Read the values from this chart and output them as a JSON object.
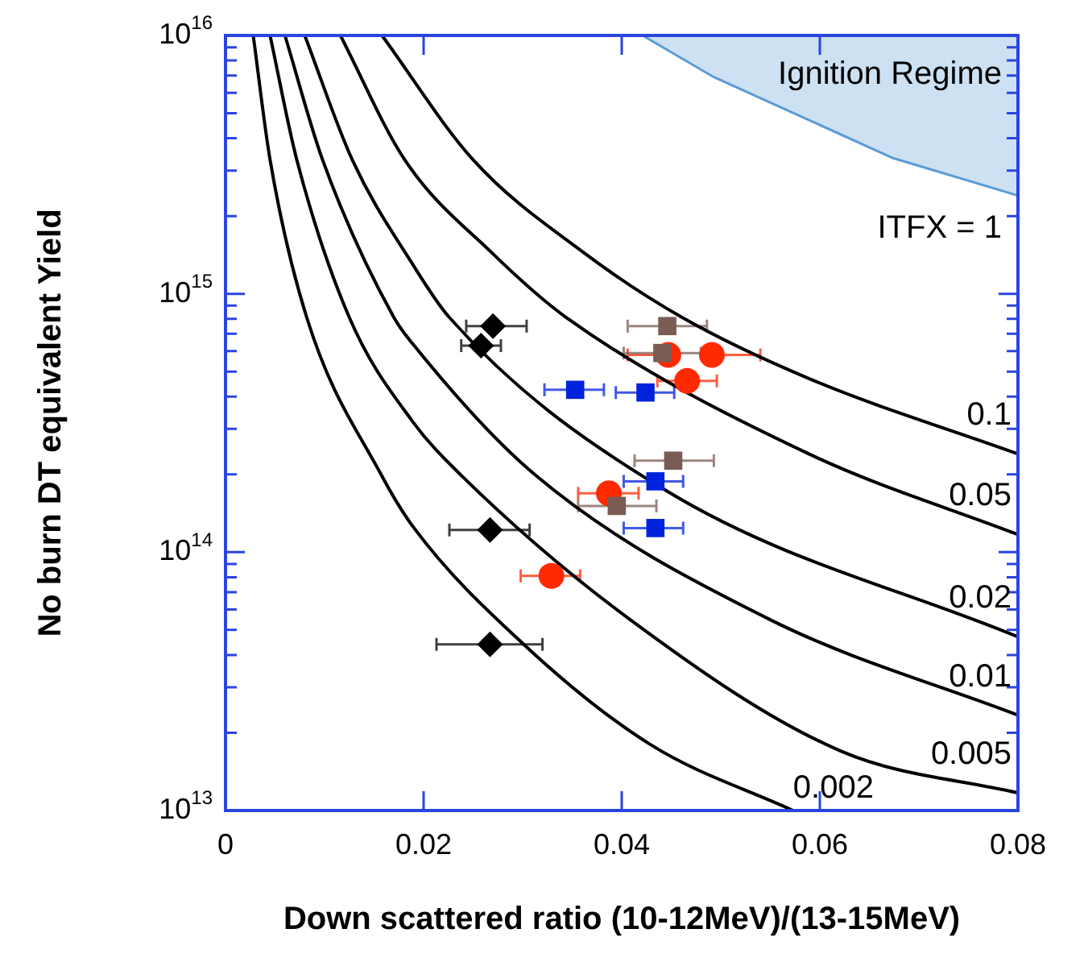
{
  "chart_data": {
    "type": "scatter",
    "xlabel": "Down scattered ratio (10-12MeV)/(13-15MeV)",
    "ylabel": "No burn DT equivalent Yield",
    "log": "y",
    "grid": false,
    "legend": false,
    "xlim": [
      0,
      0.08
    ],
    "xticks": [
      0,
      0.02,
      0.04,
      0.06,
      0.08
    ],
    "ylim": [
      10000000000000.0,
      1e+16
    ],
    "yticks": [
      {
        "value": 10000000000000.0,
        "label": "10$^{13}$"
      },
      {
        "value": 20000000000000.0,
        "label": null
      },
      {
        "value": 30000000000000.0,
        "label": null
      },
      {
        "value": 40000000000000.0,
        "label": null
      },
      {
        "value": 50000000000000.0,
        "label": null
      },
      {
        "value": 60000000000000.0,
        "label": null
      },
      {
        "value": 70000000000000.0,
        "label": null
      },
      {
        "value": 80000000000000.0,
        "label": null
      },
      {
        "value": 90000000000000.0,
        "label": null
      },
      {
        "value": 100000000000000.0,
        "label": "10$^{14}$"
      },
      {
        "value": 200000000000000.0,
        "label": null
      },
      {
        "value": 300000000000000.0,
        "label": null
      },
      {
        "value": 400000000000000.0,
        "label": null
      },
      {
        "value": 500000000000000.0,
        "label": null
      },
      {
        "value": 600000000000000.0,
        "label": null
      },
      {
        "value": 700000000000000.0,
        "label": null
      },
      {
        "value": 800000000000000.0,
        "label": null
      },
      {
        "value": 900000000000000.0,
        "label": null
      },
      {
        "value": 1000000000000000.0,
        "label": "10$^{15}$"
      },
      {
        "value": 2000000000000000.0,
        "label": null
      },
      {
        "value": 3000000000000000.0,
        "label": null
      },
      {
        "value": 4000000000000000.0,
        "label": null
      },
      {
        "value": 5000000000000000.0,
        "label": null
      },
      {
        "value": 6000000000000000.0,
        "label": null
      },
      {
        "value": 7000000000000000.0,
        "label": null
      },
      {
        "value": 8000000000000000.0,
        "label": null
      },
      {
        "value": 9000000000000000.0,
        "label": null
      },
      {
        "value": 1e+16,
        "label": "10$^{16}$"
      }
    ],
    "annotations": [
      "Ignition Regime"
    ],
    "series": [
      {
        "type": "area",
        "name": "ITFX = 1",
        "color": "#5b9bd5",
        "x": [
          0.0421,
          0.0493,
          0.0674,
          0.08,
          0.08
        ],
        "values": [
          1e+16,
          6900000000000000.0,
          3350000000000000.0,
          2400000000000000.0,
          1e+16
        ]
      },
      {
        "type": "line",
        "name": "0.1",
        "color": "#000000",
        "x": [
          0.0158,
          0.025,
          0.0362,
          0.0461,
          0.0589,
          0.08
        ],
        "values": [
          1e+16,
          3300000000000000.0,
          1440000000000000.0,
          810000000000000.0,
          470000000000000.0,
          240000000000000.0
        ]
      },
      {
        "type": "line",
        "name": "0.05",
        "color": "#000000",
        "x": [
          0.0116,
          0.0181,
          0.0269,
          0.0344,
          0.0589,
          0.08
        ],
        "values": [
          1e+16,
          3300000000000000.0,
          1440000000000000.0,
          810000000000000.0,
          240000000000000.0,
          117000000000000.0
        ]
      },
      {
        "type": "line",
        "name": "0.02",
        "color": "#000000",
        "x": [
          0.008,
          0.0128,
          0.0189,
          0.0226,
          0.0446,
          0.08
        ],
        "values": [
          1e+16,
          3300000000000000.0,
          1300000000000000.0,
          810000000000000.0,
          172000000000000.0,
          47000000000000.0
        ]
      },
      {
        "type": "line",
        "name": "0.01",
        "color": "#000000",
        "x": [
          0.006,
          0.0098,
          0.017,
          0.0189,
          0.0312,
          0.0549,
          0.08
        ],
        "values": [
          1e+16,
          3300000000000000.0,
          810000000000000.0,
          640000000000000.0,
          200000000000000.0,
          55000000000000.0,
          23400000000000.0
        ]
      },
      {
        "type": "line",
        "name": "0.005",
        "color": "#000000",
        "x": [
          0.0045,
          0.0072,
          0.0125,
          0.0189,
          0.0237,
          0.0408,
          0.0621,
          0.08
        ],
        "values": [
          1e+16,
          3300000000000000.0,
          810000000000000.0,
          320000000000000.0,
          200000000000000.0,
          55000000000000.0,
          17000000000000.0,
          11700000000000.0
        ]
      },
      {
        "type": "line",
        "name": "0.002",
        "color": "#000000",
        "x": [
          0.0028,
          0.0045,
          0.0082,
          0.0157,
          0.0189,
          0.0301,
          0.0429,
          0.0573
        ],
        "values": [
          1e+16,
          3300000000000000.0,
          810000000000000.0,
          200000000000000.0,
          126000000000000.0,
          44000000000000.0,
          18000000000000.0,
          10000000000000.0
        ]
      },
      {
        "type": "scatter",
        "marker": "diamond",
        "color": "#000000",
        "x": [
          0.027,
          0.0258,
          0.0267,
          0.0267
        ],
        "values": [
          750000000000000.0,
          630000000000000.0,
          122000000000000.0,
          44000000000000.0
        ],
        "xerrors": [
          [
            0.0243,
            0.0304
          ],
          [
            0.0238,
            0.0278
          ],
          [
            0.0226,
            0.0307
          ],
          [
            0.0213,
            0.032
          ]
        ]
      },
      {
        "type": "scatter",
        "marker": "circle",
        "color": "#ff2a00",
        "x": [
          0.0329,
          0.0387,
          0.0466,
          0.0447,
          0.0491
        ],
        "values": [
          81000000000000.0,
          169000000000000.0,
          460000000000000.0,
          580000000000000.0,
          580000000000000.0
        ],
        "xerrors": [
          [
            0.0298,
            0.0358
          ],
          [
            0.0356,
            0.0417
          ],
          [
            0.0436,
            0.0496
          ],
          [
            0.0406,
            0.0447
          ],
          [
            0.0491,
            0.054
          ]
        ]
      },
      {
        "type": "scatter",
        "marker": "square",
        "color": "#7a5c55",
        "x": [
          0.0446,
          0.0441,
          0.0452,
          0.0395
        ],
        "values": [
          750000000000000.0,
          590000000000000.0,
          226000000000000.0,
          151000000000000.0
        ],
        "xerrors": [
          [
            0.0406,
            0.0486
          ],
          [
            0.0402,
            0.048
          ],
          [
            0.0413,
            0.0493
          ],
          [
            0.0356,
            0.0435
          ]
        ]
      },
      {
        "type": "scatter",
        "marker": "square",
        "color": "#0022dd",
        "x": [
          0.0353,
          0.0424,
          0.0434,
          0.0434
        ],
        "values": [
          425000000000000.0,
          415000000000000.0,
          188000000000000.0,
          124000000000000.0
        ],
        "xerrors": [
          [
            0.0322,
            0.0382
          ],
          [
            0.0394,
            0.0453
          ],
          [
            0.0402,
            0.0462
          ],
          [
            0.0402,
            0.0462
          ]
        ]
      }
    ]
  }
}
